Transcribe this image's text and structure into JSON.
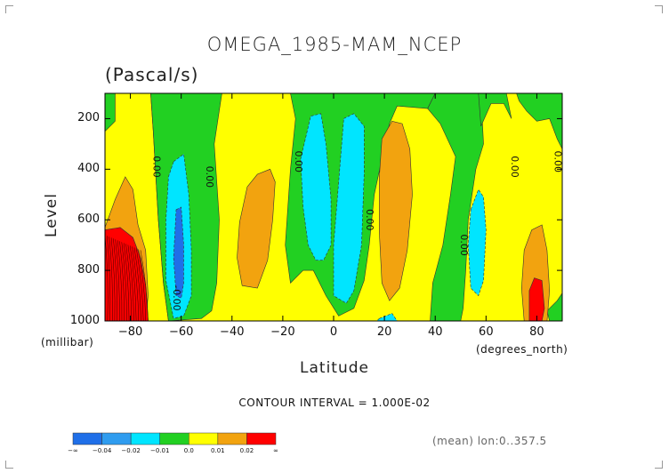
{
  "chart_data": {
    "type": "contour",
    "title": "OMEGA_1985-MAM_NCEP",
    "units": "(Pascal/s)",
    "ylabel": "Level",
    "ylabel_units": "(millibar)",
    "xlabel": "Latitude",
    "xlabel_units": "(degrees_north)",
    "xlim": [
      -90,
      90
    ],
    "ylim": [
      1000,
      100
    ],
    "x_ticks": [
      -80,
      -60,
      -40,
      -20,
      0,
      20,
      40,
      60,
      80
    ],
    "y_ticks": [
      200,
      400,
      600,
      800,
      1000
    ],
    "contour_interval_text": "CONTOUR INTERVAL = 1.000E-02",
    "footer_text": "(mean) lon:0..357.5",
    "colorbar": {
      "boundaries": [
        "-∞",
        "-0.04",
        "-0.02",
        "-0.01",
        "0.0",
        "0.01",
        "0.02",
        "∞"
      ],
      "colors": [
        "#1f6fe8",
        "#2f9cef",
        "#00e5ff",
        "#22d022",
        "#ffff00",
        "#f2a30f",
        "#ff0000"
      ]
    },
    "zero_labels": [
      {
        "text": "0.00",
        "lat": -71,
        "lev": 390
      },
      {
        "text": "0.00",
        "lat": -50,
        "lev": 430
      },
      {
        "text": "-0.00",
        "lat": -63,
        "lev": 910
      },
      {
        "text": "0.00",
        "lat": -15,
        "lev": 370
      },
      {
        "text": "0.00",
        "lat": 13,
        "lev": 600
      },
      {
        "text": "0.00",
        "lat": 50,
        "lev": 700
      },
      {
        "text": "0.00",
        "lat": 70,
        "lev": 390
      },
      {
        "text": "0.00",
        "lat": 87,
        "lev": 370
      }
    ],
    "regions": [
      {
        "color": "yellow",
        "poly": [
          [
            -90,
            100
          ],
          [
            -72,
            100
          ],
          [
            -71,
            250
          ],
          [
            -69,
            600
          ],
          [
            -67,
            850
          ],
          [
            -65,
            1000
          ],
          [
            -90,
            1000
          ]
        ]
      },
      {
        "color": "green",
        "poly": [
          [
            -90,
            100
          ],
          [
            -86,
            100
          ],
          [
            -86,
            210
          ],
          [
            -90,
            250
          ]
        ]
      },
      {
        "color": "orange",
        "poly": [
          [
            -90,
            630
          ],
          [
            -86,
            520
          ],
          [
            -82,
            430
          ],
          [
            -79,
            480
          ],
          [
            -77,
            620
          ],
          [
            -74,
            720
          ],
          [
            -73,
            900
          ],
          [
            -74,
            1000
          ],
          [
            -90,
            1000
          ]
        ]
      },
      {
        "color": "red",
        "poly": [
          [
            -90,
            640
          ],
          [
            -84,
            630
          ],
          [
            -79,
            670
          ],
          [
            -76,
            750
          ],
          [
            -74,
            860
          ],
          [
            -73,
            1000
          ],
          [
            -90,
            1000
          ]
        ]
      },
      {
        "color": "green",
        "poly": [
          [
            -72,
            100
          ],
          [
            -44,
            100
          ],
          [
            -47,
            300
          ],
          [
            -45,
            600
          ],
          [
            -46,
            850
          ],
          [
            -48,
            960
          ],
          [
            -52,
            990
          ],
          [
            -65,
            1000
          ],
          [
            -67,
            850
          ],
          [
            -69,
            600
          ],
          [
            -71,
            250
          ]
        ]
      },
      {
        "color": "cyan",
        "poly": [
          [
            -63,
            370
          ],
          [
            -59,
            340
          ],
          [
            -57,
            500
          ],
          [
            -56,
            720
          ],
          [
            -56,
            900
          ],
          [
            -59,
            980
          ],
          [
            -63,
            990
          ],
          [
            -66,
            840
          ],
          [
            -66,
            600
          ],
          [
            -65,
            430
          ]
        ]
      },
      {
        "color": "blue",
        "poly": [
          [
            -62,
            560
          ],
          [
            -60,
            550
          ],
          [
            -59,
            700
          ],
          [
            -59,
            850
          ],
          [
            -60,
            910
          ],
          [
            -62,
            900
          ],
          [
            -63,
            750
          ]
        ]
      },
      {
        "color": "orange",
        "poly": [
          [
            -34,
            470
          ],
          [
            -30,
            420
          ],
          [
            -25,
            400
          ],
          [
            -23,
            450
          ],
          [
            -24,
            600
          ],
          [
            -26,
            760
          ],
          [
            -30,
            870
          ],
          [
            -36,
            860
          ],
          [
            -38,
            750
          ],
          [
            -37,
            610
          ]
        ]
      },
      {
        "color": "green",
        "poly": [
          [
            -17,
            100
          ],
          [
            40,
            100
          ],
          [
            37,
            160
          ],
          [
            25,
            150
          ],
          [
            22,
            220
          ],
          [
            16,
            500
          ],
          [
            14,
            700
          ],
          [
            12,
            840
          ],
          [
            8,
            950
          ],
          [
            2,
            980
          ],
          [
            -3,
            900
          ],
          [
            -8,
            800
          ],
          [
            -12,
            800
          ],
          [
            -17,
            850
          ],
          [
            -19,
            700
          ],
          [
            -17,
            400
          ],
          [
            -15,
            200
          ]
        ]
      },
      {
        "color": "cyan",
        "poly": [
          [
            -13,
            360
          ],
          [
            -9,
            190
          ],
          [
            -5,
            180
          ],
          [
            -3,
            300
          ],
          [
            -1,
            520
          ],
          [
            -1,
            700
          ],
          [
            -4,
            760
          ],
          [
            -7,
            760
          ],
          [
            -10,
            700
          ],
          [
            -12,
            550
          ]
        ]
      },
      {
        "color": "cyan",
        "poly": [
          [
            4,
            200
          ],
          [
            8,
            180
          ],
          [
            12,
            230
          ],
          [
            12,
            420
          ],
          [
            11,
            700
          ],
          [
            8,
            880
          ],
          [
            5,
            930
          ],
          [
            0,
            900
          ],
          [
            0,
            700
          ],
          [
            2,
            450
          ]
        ]
      },
      {
        "color": "cyan",
        "poly": [
          [
            18,
            990
          ],
          [
            23,
            970
          ],
          [
            25,
            1000
          ],
          [
            17,
            1000
          ]
        ]
      },
      {
        "color": "orange",
        "poly": [
          [
            19,
            280
          ],
          [
            23,
            210
          ],
          [
            27,
            220
          ],
          [
            30,
            320
          ],
          [
            31,
            500
          ],
          [
            29,
            720
          ],
          [
            26,
            870
          ],
          [
            22,
            920
          ],
          [
            19,
            850
          ],
          [
            18,
            650
          ],
          [
            18,
            430
          ]
        ]
      },
      {
        "color": "green",
        "poly": [
          [
            40,
            100
          ],
          [
            58,
            100
          ],
          [
            59,
            300
          ],
          [
            56,
            400
          ],
          [
            53,
            600
          ],
          [
            52,
            800
          ],
          [
            51,
            950
          ],
          [
            50,
            1000
          ],
          [
            38,
            1000
          ],
          [
            39,
            850
          ],
          [
            43,
            700
          ],
          [
            46,
            500
          ],
          [
            48,
            350
          ],
          [
            42,
            220
          ],
          [
            37,
            160
          ]
        ]
      },
      {
        "color": "green",
        "poly": [
          [
            57,
            100
          ],
          [
            68,
            100
          ],
          [
            70,
            200
          ],
          [
            67,
            140
          ],
          [
            62,
            140
          ],
          [
            58,
            230
          ]
        ]
      },
      {
        "color": "cyan",
        "poly": [
          [
            54,
            560
          ],
          [
            57,
            480
          ],
          [
            59,
            510
          ],
          [
            60,
            640
          ],
          [
            59,
            840
          ],
          [
            57,
            900
          ],
          [
            54,
            870
          ],
          [
            53,
            700
          ]
        ]
      },
      {
        "color": "green",
        "poly": [
          [
            72,
            100
          ],
          [
            90,
            100
          ],
          [
            90,
            320
          ],
          [
            88,
            280
          ],
          [
            85,
            200
          ],
          [
            80,
            210
          ],
          [
            76,
            170
          ],
          [
            73,
            130
          ]
        ]
      },
      {
        "color": "green",
        "poly": [
          [
            84,
            960
          ],
          [
            88,
            920
          ],
          [
            90,
            890
          ],
          [
            90,
            1000
          ],
          [
            85,
            1000
          ]
        ]
      },
      {
        "color": "orange",
        "poly": [
          [
            75,
            720
          ],
          [
            78,
            640
          ],
          [
            82,
            620
          ],
          [
            84,
            720
          ],
          [
            85,
            880
          ],
          [
            84,
            1000
          ],
          [
            75,
            1000
          ],
          [
            74,
            870
          ]
        ]
      },
      {
        "color": "red",
        "poly": [
          [
            77,
            880
          ],
          [
            79,
            830
          ],
          [
            82,
            840
          ],
          [
            83,
            950
          ],
          [
            82,
            1000
          ],
          [
            77,
            1000
          ]
        ]
      }
    ]
  }
}
